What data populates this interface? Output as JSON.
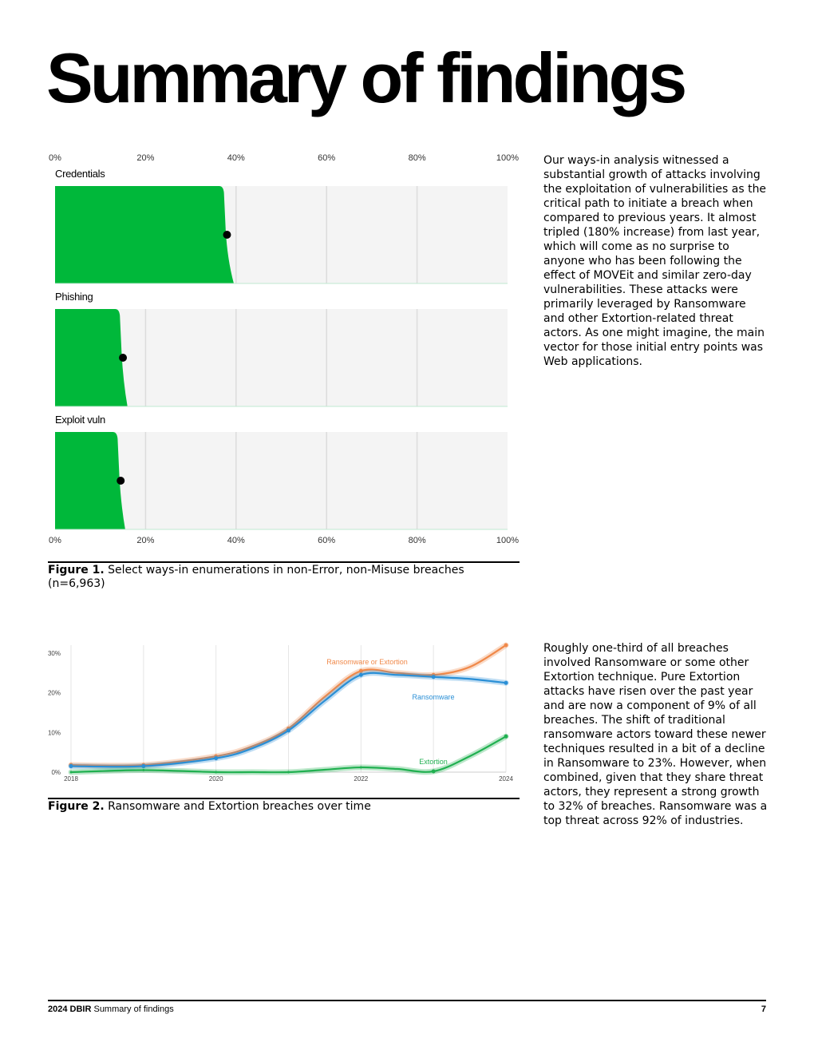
{
  "page": {
    "title": "Summary of findings",
    "paragraph1": "Our ways-in analysis witnessed a substantial growth of attacks involving the exploitation of vulnerabilities as the critical path to initiate a breach when compared to previous years. It almost tripled (180% increase) from last year, which will come as no surprise to anyone who has been following the effect of MOVEit and similar zero-day vulnerabilities. These attacks were primarily leveraged by Ransomware and other Extortion-related threat actors. As one might imagine, the main vector for those initial entry points was Web applications.",
    "paragraph2": "Roughly one-third of all breaches involved Ransomware or some other Extortion technique. Pure Extortion attacks have risen over the past year and are now a component of 9% of all breaches. The shift of traditional ransomware actors toward these newer techniques resulted in a bit of a decline in Ransomware to 23%. However, when combined, given that they share threat actors, they represent a strong growth to 32% of breaches. Ransomware was a top threat across 92% of industries.",
    "figure1_label": "Figure 1.",
    "figure1_caption": " Select ways-in enumerations in non-Error, non-Misuse breaches (n=6,963)",
    "figure2_label": "Figure 2.",
    "figure2_caption": " Ransomware and Extortion breaches over time",
    "footer_bold": "2024 DBIR",
    "footer_text": " Summary of findings",
    "page_number": "7"
  },
  "colors": {
    "fill_green": "#00b83a",
    "panel_bg": "#f4f4f4",
    "orange": "#f0894a",
    "blue": "#2a8fd6",
    "green_line": "#20b050"
  },
  "chart_data": [
    {
      "type": "area",
      "title": "",
      "x_tick_labels": [
        "0%",
        "20%",
        "40%",
        "60%",
        "80%",
        "100%"
      ],
      "xlim": [
        0,
        100
      ],
      "panels": [
        {
          "name": "Credentials",
          "value": 38,
          "spread": [
            37,
            39.5
          ]
        },
        {
          "name": "Phishing",
          "value": 15,
          "spread": [
            14,
            16
          ]
        },
        {
          "name": "Exploit vuln",
          "value": 14.5,
          "spread": [
            13.5,
            15.5
          ]
        }
      ]
    },
    {
      "type": "line",
      "title": "",
      "x_tick_labels": [
        "2018",
        "2020",
        "2022",
        "2024"
      ],
      "y_tick_labels": [
        "0%",
        "10%",
        "20%",
        "30%"
      ],
      "xlim": [
        2018,
        2024
      ],
      "ylim": [
        0,
        32
      ],
      "series": [
        {
          "name": "Ransomware or Extortion",
          "x": [
            2018,
            2019,
            2020,
            2020.5,
            2021,
            2021.5,
            2022,
            2022.5,
            2023,
            2023.5,
            2024
          ],
          "y": [
            1.8,
            1.8,
            4,
            6.5,
            11,
            19,
            25.5,
            25,
            24.5,
            26.5,
            32
          ]
        },
        {
          "name": "Ransomware",
          "x": [
            2018,
            2019,
            2020,
            2020.5,
            2021,
            2021.5,
            2022,
            2022.5,
            2023,
            2023.5,
            2024
          ],
          "y": [
            1.5,
            1.5,
            3.5,
            6,
            10.5,
            18,
            24.5,
            24.5,
            24,
            23.5,
            22.5
          ]
        },
        {
          "name": "Extortion",
          "x": [
            2018,
            2019,
            2020,
            2020.5,
            2021,
            2021.5,
            2022,
            2022.5,
            2023,
            2023.5,
            2024
          ],
          "y": [
            0,
            0.5,
            0,
            0,
            0,
            0.6,
            1.2,
            0.8,
            0.2,
            4,
            9
          ]
        }
      ]
    }
  ]
}
